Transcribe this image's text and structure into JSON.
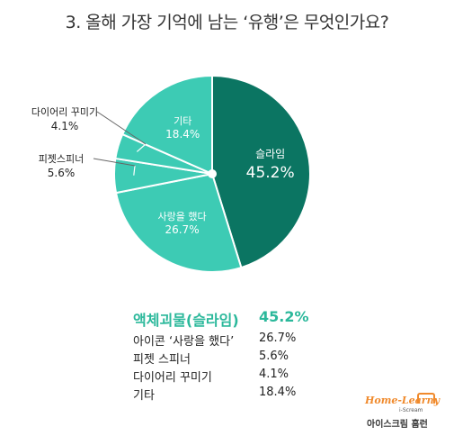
{
  "title": "3. 올해 가장 기억에 남는 ‘유행’은 무엇인가요?",
  "chart_data": {
    "type": "pie",
    "title": "3. 올해 가장 기억에 남는 ‘유행’은 무엇인가요?",
    "slices": [
      {
        "label": "슬라임",
        "value": 45.2,
        "value_text": "45.2%",
        "color": "#0b7562",
        "label_position": "inside"
      },
      {
        "label": "사랑을 했다",
        "value": 26.7,
        "value_text": "26.7%",
        "color": "#3dcbb4",
        "label_position": "inside"
      },
      {
        "label": "피젯스피너",
        "value": 5.6,
        "value_text": "5.6%",
        "color": "#3dcbb4",
        "label_position": "outside"
      },
      {
        "label": "다이어리 꾸미기",
        "value": 4.1,
        "value_text": "4.1%",
        "color": "#3dcbb4",
        "label_position": "outside"
      },
      {
        "label": "기타",
        "value": 18.4,
        "value_text": "18.4%",
        "color": "#3dcbb4",
        "label_position": "inside"
      }
    ],
    "slice_border_color": "#ffffff",
    "center_dot_color": "#ffffff"
  },
  "table": [
    {
      "label": "액체괴물(슬라임)",
      "value": "45.2%",
      "highlight": true
    },
    {
      "label": "아이콘 ‘사랑을 했다’",
      "value": "26.7%",
      "highlight": false
    },
    {
      "label": "피젯 스피너",
      "value": "5.6%",
      "highlight": false
    },
    {
      "label": "다이어리 꾸미기",
      "value": "4.1%",
      "highlight": false
    },
    {
      "label": "기타",
      "value": "18.4%",
      "highlight": false
    }
  ],
  "logo": {
    "wordmark": "Home-Learny",
    "sub": "i-Scream",
    "brand": "아이스크림 홈런",
    "color": "#f08a2c"
  }
}
